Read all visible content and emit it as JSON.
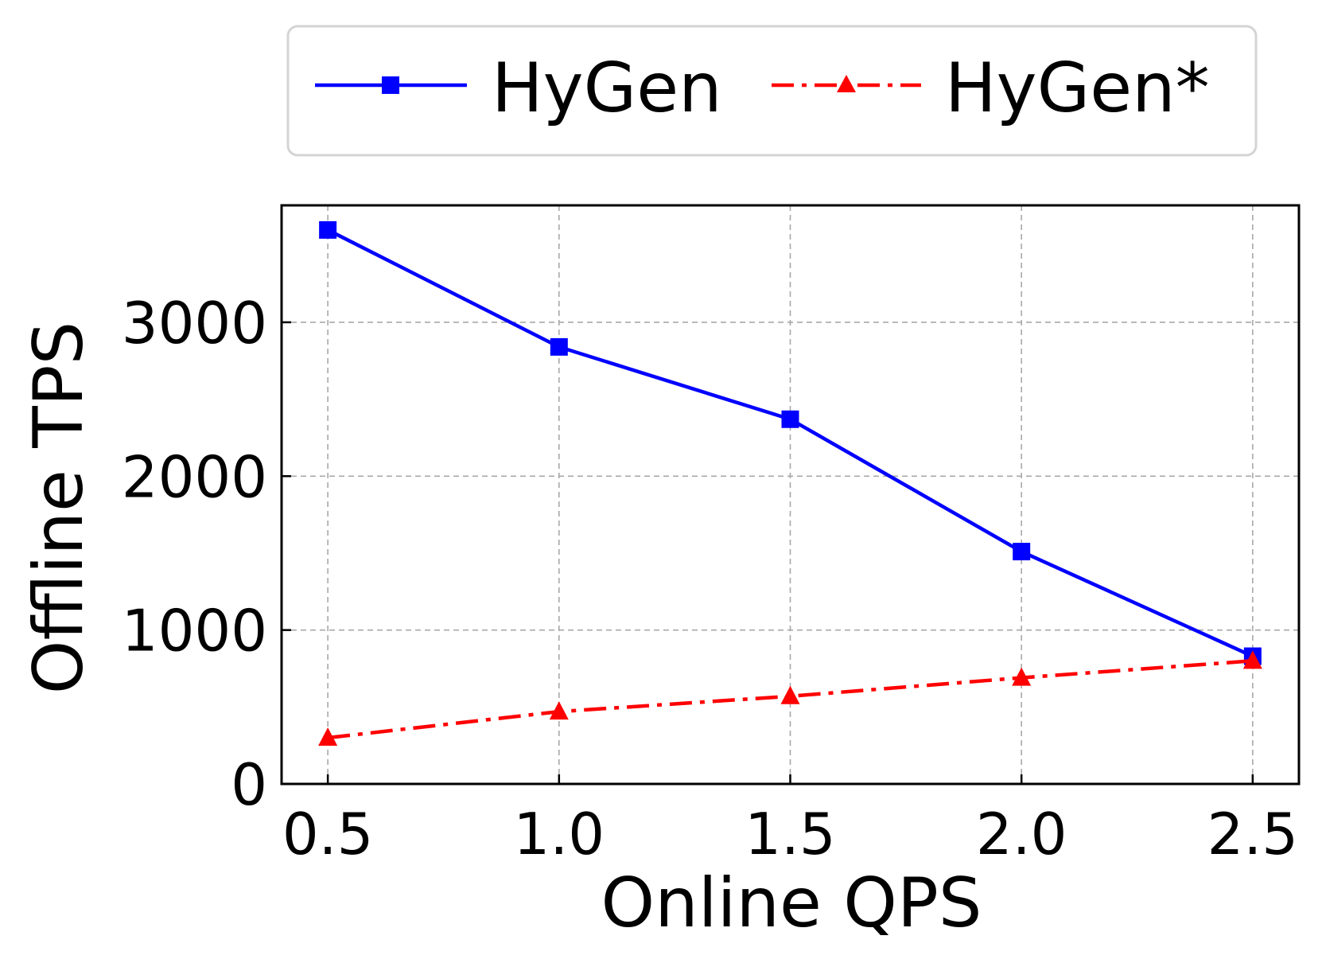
{
  "chart_data": {
    "type": "line",
    "title": "",
    "xlabel": "Online QPS",
    "ylabel": "Offline TPS",
    "x": [
      0.5,
      1.0,
      1.5,
      2.0,
      2.5
    ],
    "x_ticks": [
      "0.5",
      "1.0",
      "1.5",
      "2.0",
      "2.5"
    ],
    "y_ticks": [
      "0",
      "1000",
      "2000",
      "3000"
    ],
    "xlim": [
      0.4,
      2.6
    ],
    "ylim": [
      0,
      3760
    ],
    "grid": true,
    "legend_position": "top-center",
    "series": [
      {
        "name": "HyGen",
        "values": [
          3600,
          2840,
          2370,
          1510,
          830
        ],
        "color": "#0000ff",
        "marker": "square",
        "line_style": "solid"
      },
      {
        "name": "HyGen*",
        "values": [
          300,
          470,
          570,
          690,
          800
        ],
        "color": "#ff0000",
        "marker": "triangle",
        "line_style": "dash-dot"
      }
    ]
  }
}
